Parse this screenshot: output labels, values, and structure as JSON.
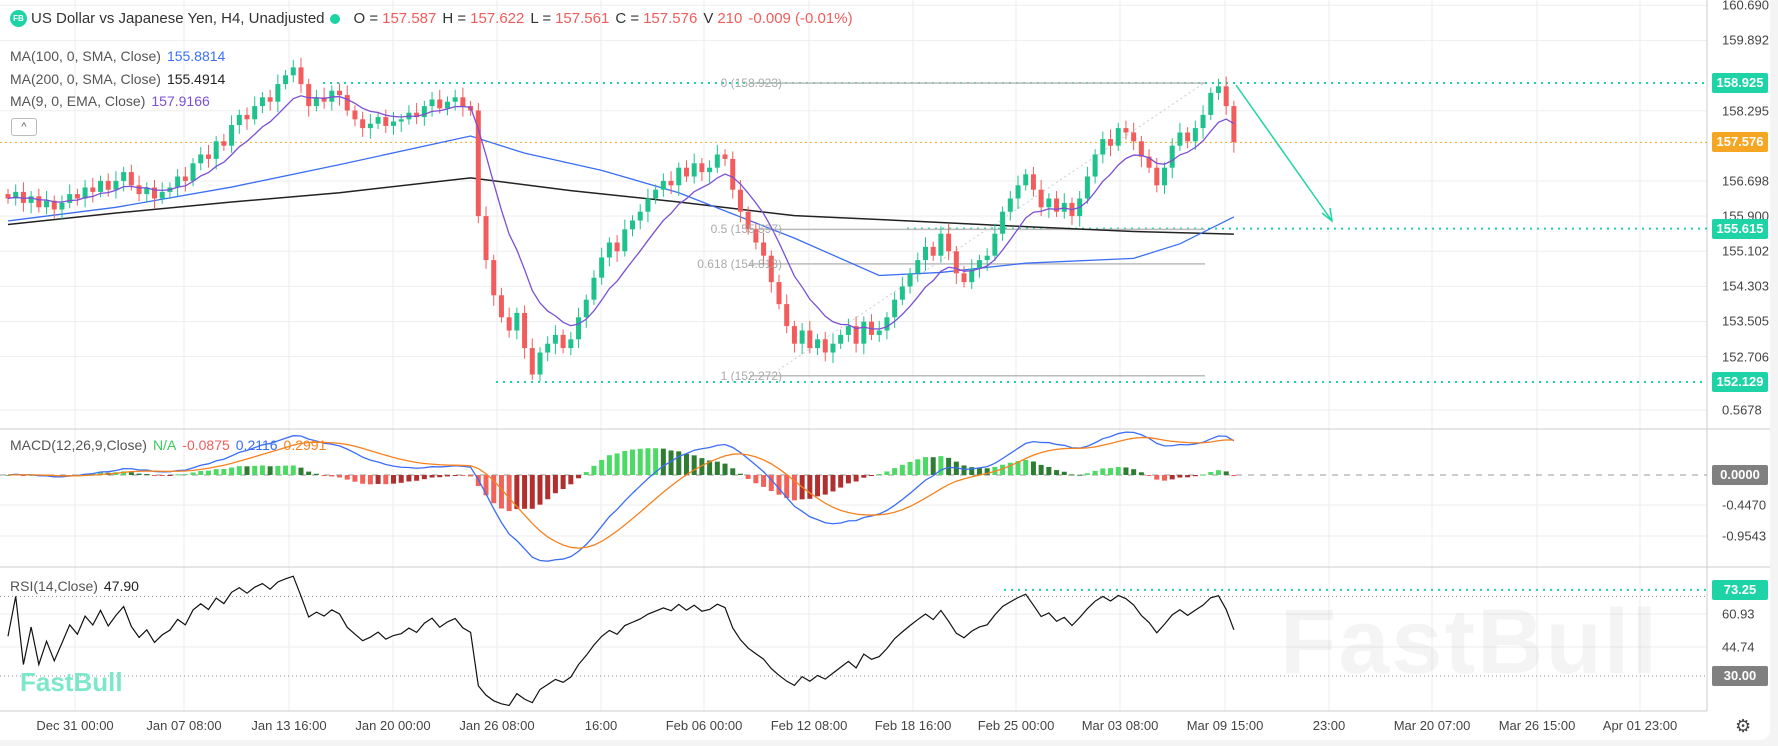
{
  "header": {
    "logo_text": "FB",
    "title": "US Dollar vs Japanese Yen, H4, Unadjusted",
    "open_label": "O =",
    "open": "157.587",
    "high_label": "H =",
    "high": "157.622",
    "low_label": "L =",
    "low": "157.561",
    "close_label": "C =",
    "close": "157.576",
    "volume_label": "V",
    "volume": "210",
    "change": "-0.009 (-0.01%)"
  },
  "indicators": {
    "ma100": {
      "label": "MA(100, 0, SMA, Close)",
      "value": "155.8814",
      "color": "#3b6ef5"
    },
    "ma200": {
      "label": "MA(200, 0, SMA, Close)",
      "value": "155.4914",
      "color": "#222222"
    },
    "ema9": {
      "label": "MA(9, 0, EMA, Close)",
      "value": "157.9166",
      "color": "#7b4fd6"
    },
    "collapse_icon": "chevron-up-icon",
    "collapse_glyph": "^",
    "macd": {
      "label": "MACD(12,26,9,Close)",
      "na": "N/A",
      "hist": "-0.0875",
      "macd": "0.2116",
      "signal": "0.2991"
    },
    "rsi": {
      "label": "RSI(14,Close)",
      "value": "47.90"
    }
  },
  "price_axis": {
    "ticks": [
      "160.690",
      "159.892",
      "158.295",
      "156.698",
      "155.900",
      "155.102",
      "154.303",
      "153.505",
      "152.706"
    ],
    "badges": [
      {
        "text": "158.925",
        "color": "#1ed3a6"
      },
      {
        "text": "157.576",
        "color": "#f5a623"
      },
      {
        "text": "155.615",
        "color": "#1ed3a6"
      },
      {
        "text": "152.129",
        "color": "#1ed3a6"
      }
    ]
  },
  "macd_axis": {
    "ticks": [
      "0.5678",
      "-0.4470",
      "-0.9543"
    ],
    "zero_badge": "0.0000"
  },
  "rsi_axis": {
    "ticks": [
      "60.93",
      "44.74"
    ],
    "badge_high": "73.25",
    "badge_low": "30.00"
  },
  "time_axis": [
    "Dec 31 00:00",
    "Jan 07 08:00",
    "Jan 13 16:00",
    "Jan 20 00:00",
    "Jan 26 08:00",
    "16:00",
    "Feb 06 00:00",
    "Feb 12 08:00",
    "Feb 18 16:00",
    "Feb 25 00:00",
    "Mar 03 08:00",
    "Mar 09 15:00",
    "23:00",
    "Mar 20 07:00",
    "Mar 26 15:00",
    "Apr 01 23:00"
  ],
  "fibonacci": [
    {
      "label": "0 (158.923)",
      "price": 158.923
    },
    {
      "label": "0.5 (155.597)",
      "price": 155.597
    },
    {
      "label": "0.618 (154.813)",
      "price": 154.813
    },
    {
      "label": "1 (152.272)",
      "price": 152.272
    }
  ],
  "watermark": "FastBull",
  "logo_small": "FastBull",
  "settings_icon": "gear-icon",
  "colors": {
    "up": "#1fc28c",
    "down": "#f25c5c",
    "accent": "#1ed3a6",
    "price_line": "#f5a623"
  },
  "chart_data": {
    "type": "candlestick",
    "symbol": "USDJPY H4",
    "price_range": [
      151.9,
      160.69
    ],
    "close": [
      156.3,
      156.45,
      156.2,
      156.35,
      156.1,
      156.25,
      156.05,
      156.2,
      156.4,
      156.3,
      156.55,
      156.45,
      156.7,
      156.5,
      156.7,
      156.9,
      156.6,
      156.4,
      156.55,
      156.3,
      156.45,
      156.55,
      156.8,
      156.7,
      157.1,
      157.3,
      157.2,
      157.6,
      157.5,
      157.97,
      158.2,
      158.1,
      158.4,
      158.6,
      158.5,
      158.9,
      159.1,
      159.28,
      158.9,
      158.4,
      158.6,
      158.5,
      158.75,
      158.65,
      158.3,
      158.1,
      157.9,
      158.0,
      158.15,
      157.95,
      158.05,
      158.1,
      158.25,
      158.15,
      158.4,
      158.55,
      158.35,
      158.5,
      158.6,
      158.4,
      158.3,
      155.9,
      154.9,
      154.1,
      153.6,
      153.3,
      153.7,
      152.9,
      152.3,
      152.8,
      153.0,
      153.2,
      152.9,
      153.1,
      153.6,
      154.0,
      154.5,
      154.96,
      155.3,
      155.1,
      155.6,
      155.8,
      156.0,
      156.3,
      156.5,
      156.7,
      156.6,
      157.0,
      156.8,
      157.1,
      156.9,
      157.0,
      157.3,
      157.2,
      156.5,
      156.0,
      155.6,
      155.3,
      155.0,
      154.4,
      153.9,
      153.4,
      153.0,
      153.3,
      152.9,
      153.1,
      152.8,
      153.0,
      153.2,
      153.4,
      153.0,
      153.5,
      153.2,
      153.3,
      153.6,
      154.0,
      154.3,
      154.6,
      154.9,
      155.2,
      155.0,
      155.5,
      155.1,
      154.6,
      154.4,
      154.7,
      154.9,
      155.0,
      155.5,
      156.0,
      156.3,
      156.6,
      156.85,
      156.5,
      156.1,
      156.3,
      156.0,
      156.2,
      155.9,
      156.3,
      156.8,
      157.3,
      157.65,
      157.5,
      157.9,
      157.8,
      157.6,
      157.25,
      157.0,
      156.6,
      157.0,
      157.5,
      157.8,
      157.6,
      157.9,
      158.2,
      158.7,
      158.85,
      158.4,
      157.58
    ],
    "ma100_points": [
      [
        0,
        155.79
      ],
      [
        14,
        156.1
      ],
      [
        29,
        156.56
      ],
      [
        43,
        157.07
      ],
      [
        60,
        157.72
      ],
      [
        67,
        157.33
      ],
      [
        77,
        156.94
      ],
      [
        87,
        156.43
      ],
      [
        102,
        155.4
      ],
      [
        113,
        154.55
      ],
      [
        121,
        154.62
      ],
      [
        132,
        154.83
      ],
      [
        146,
        154.94
      ],
      [
        152,
        155.27
      ],
      [
        159,
        155.88
      ]
    ],
    "ma200_points": [
      [
        0,
        155.71
      ],
      [
        14,
        155.97
      ],
      [
        29,
        156.22
      ],
      [
        43,
        156.43
      ],
      [
        60,
        156.77
      ],
      [
        73,
        156.48
      ],
      [
        87,
        156.22
      ],
      [
        102,
        155.91
      ],
      [
        117,
        155.79
      ],
      [
        132,
        155.66
      ],
      [
        146,
        155.55
      ],
      [
        159,
        155.49
      ]
    ],
    "horizontal_levels": [
      158.925,
      155.615,
      152.129
    ],
    "last_price": 157.576,
    "rsi_levels": [
      70,
      30,
      73.25
    ]
  }
}
